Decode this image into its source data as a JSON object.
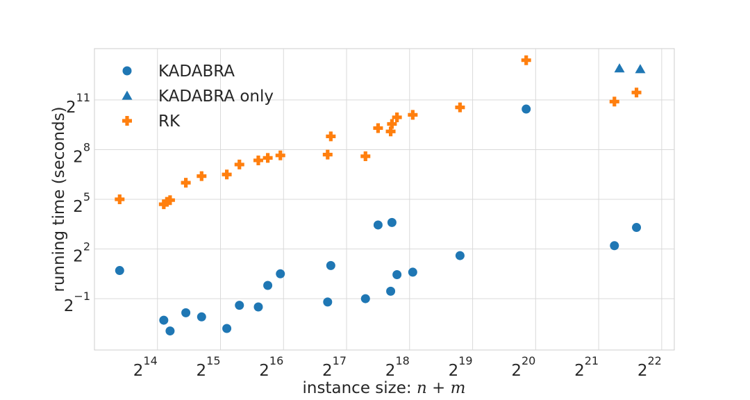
{
  "chart_data": {
    "type": "scatter",
    "title": "",
    "xlabel": "instance size: n + m",
    "ylabel": "running time (seconds)",
    "x_scale": "log2",
    "y_scale": "log2",
    "xlim_log2": [
      13,
      22.2
    ],
    "ylim_log2": [
      -4.1,
      14.1
    ],
    "grid": true,
    "legend": "top-left",
    "x_ticks": [
      {
        "base": "2",
        "exp": "14",
        "log2": 14
      },
      {
        "base": "2",
        "exp": "15",
        "log2": 15
      },
      {
        "base": "2",
        "exp": "16",
        "log2": 16
      },
      {
        "base": "2",
        "exp": "17",
        "log2": 17
      },
      {
        "base": "2",
        "exp": "18",
        "log2": 18
      },
      {
        "base": "2",
        "exp": "19",
        "log2": 19
      },
      {
        "base": "2",
        "exp": "20",
        "log2": 20
      },
      {
        "base": "2",
        "exp": "21",
        "log2": 21
      },
      {
        "base": "2",
        "exp": "22",
        "log2": 22
      }
    ],
    "y_ticks": [
      {
        "base": "2",
        "exp": "−1",
        "log2": -1
      },
      {
        "base": "2",
        "exp": "2",
        "log2": 2
      },
      {
        "base": "2",
        "exp": "5",
        "log2": 5
      },
      {
        "base": "2",
        "exp": "8",
        "log2": 8
      },
      {
        "base": "2",
        "exp": "11",
        "log2": 11
      }
    ],
    "series": [
      {
        "name": "KADABRA",
        "marker": "circle",
        "color": "#1f77b4",
        "points_log2": [
          [
            13.4,
            0.7
          ],
          [
            14.1,
            -2.3
          ],
          [
            14.2,
            -2.95
          ],
          [
            14.45,
            -1.85
          ],
          [
            14.7,
            -2.1
          ],
          [
            15.1,
            -2.8
          ],
          [
            15.3,
            -1.4
          ],
          [
            15.6,
            -1.5
          ],
          [
            15.75,
            -0.2
          ],
          [
            15.95,
            0.5
          ],
          [
            16.7,
            -1.2
          ],
          [
            16.75,
            1.0
          ],
          [
            17.3,
            -1.0
          ],
          [
            17.5,
            3.45
          ],
          [
            17.7,
            -0.55
          ],
          [
            17.72,
            3.6
          ],
          [
            17.8,
            0.45
          ],
          [
            18.05,
            0.6
          ],
          [
            18.8,
            1.6
          ],
          [
            19.85,
            10.45
          ],
          [
            21.25,
            2.2
          ],
          [
            21.6,
            3.3
          ]
        ]
      },
      {
        "name": "KADABRA only",
        "marker": "triangle",
        "color": "#1f77b4",
        "points_log2": [
          [
            21.33,
            12.9
          ],
          [
            21.66,
            12.85
          ]
        ]
      },
      {
        "name": "RK",
        "marker": "plus",
        "color": "#ff7f0e",
        "points_log2": [
          [
            13.4,
            5.0
          ],
          [
            14.1,
            4.7
          ],
          [
            14.15,
            4.85
          ],
          [
            14.2,
            4.95
          ],
          [
            14.45,
            6.0
          ],
          [
            14.7,
            6.4
          ],
          [
            15.1,
            6.5
          ],
          [
            15.3,
            7.1
          ],
          [
            15.6,
            7.35
          ],
          [
            15.75,
            7.5
          ],
          [
            15.95,
            7.65
          ],
          [
            16.7,
            7.7
          ],
          [
            16.75,
            8.8
          ],
          [
            17.3,
            7.6
          ],
          [
            17.5,
            9.3
          ],
          [
            17.7,
            9.1
          ],
          [
            17.72,
            9.55
          ],
          [
            17.8,
            9.95
          ],
          [
            18.05,
            10.1
          ],
          [
            18.8,
            10.55
          ],
          [
            19.85,
            13.4
          ],
          [
            21.25,
            10.9
          ],
          [
            21.6,
            11.45
          ]
        ]
      }
    ]
  }
}
